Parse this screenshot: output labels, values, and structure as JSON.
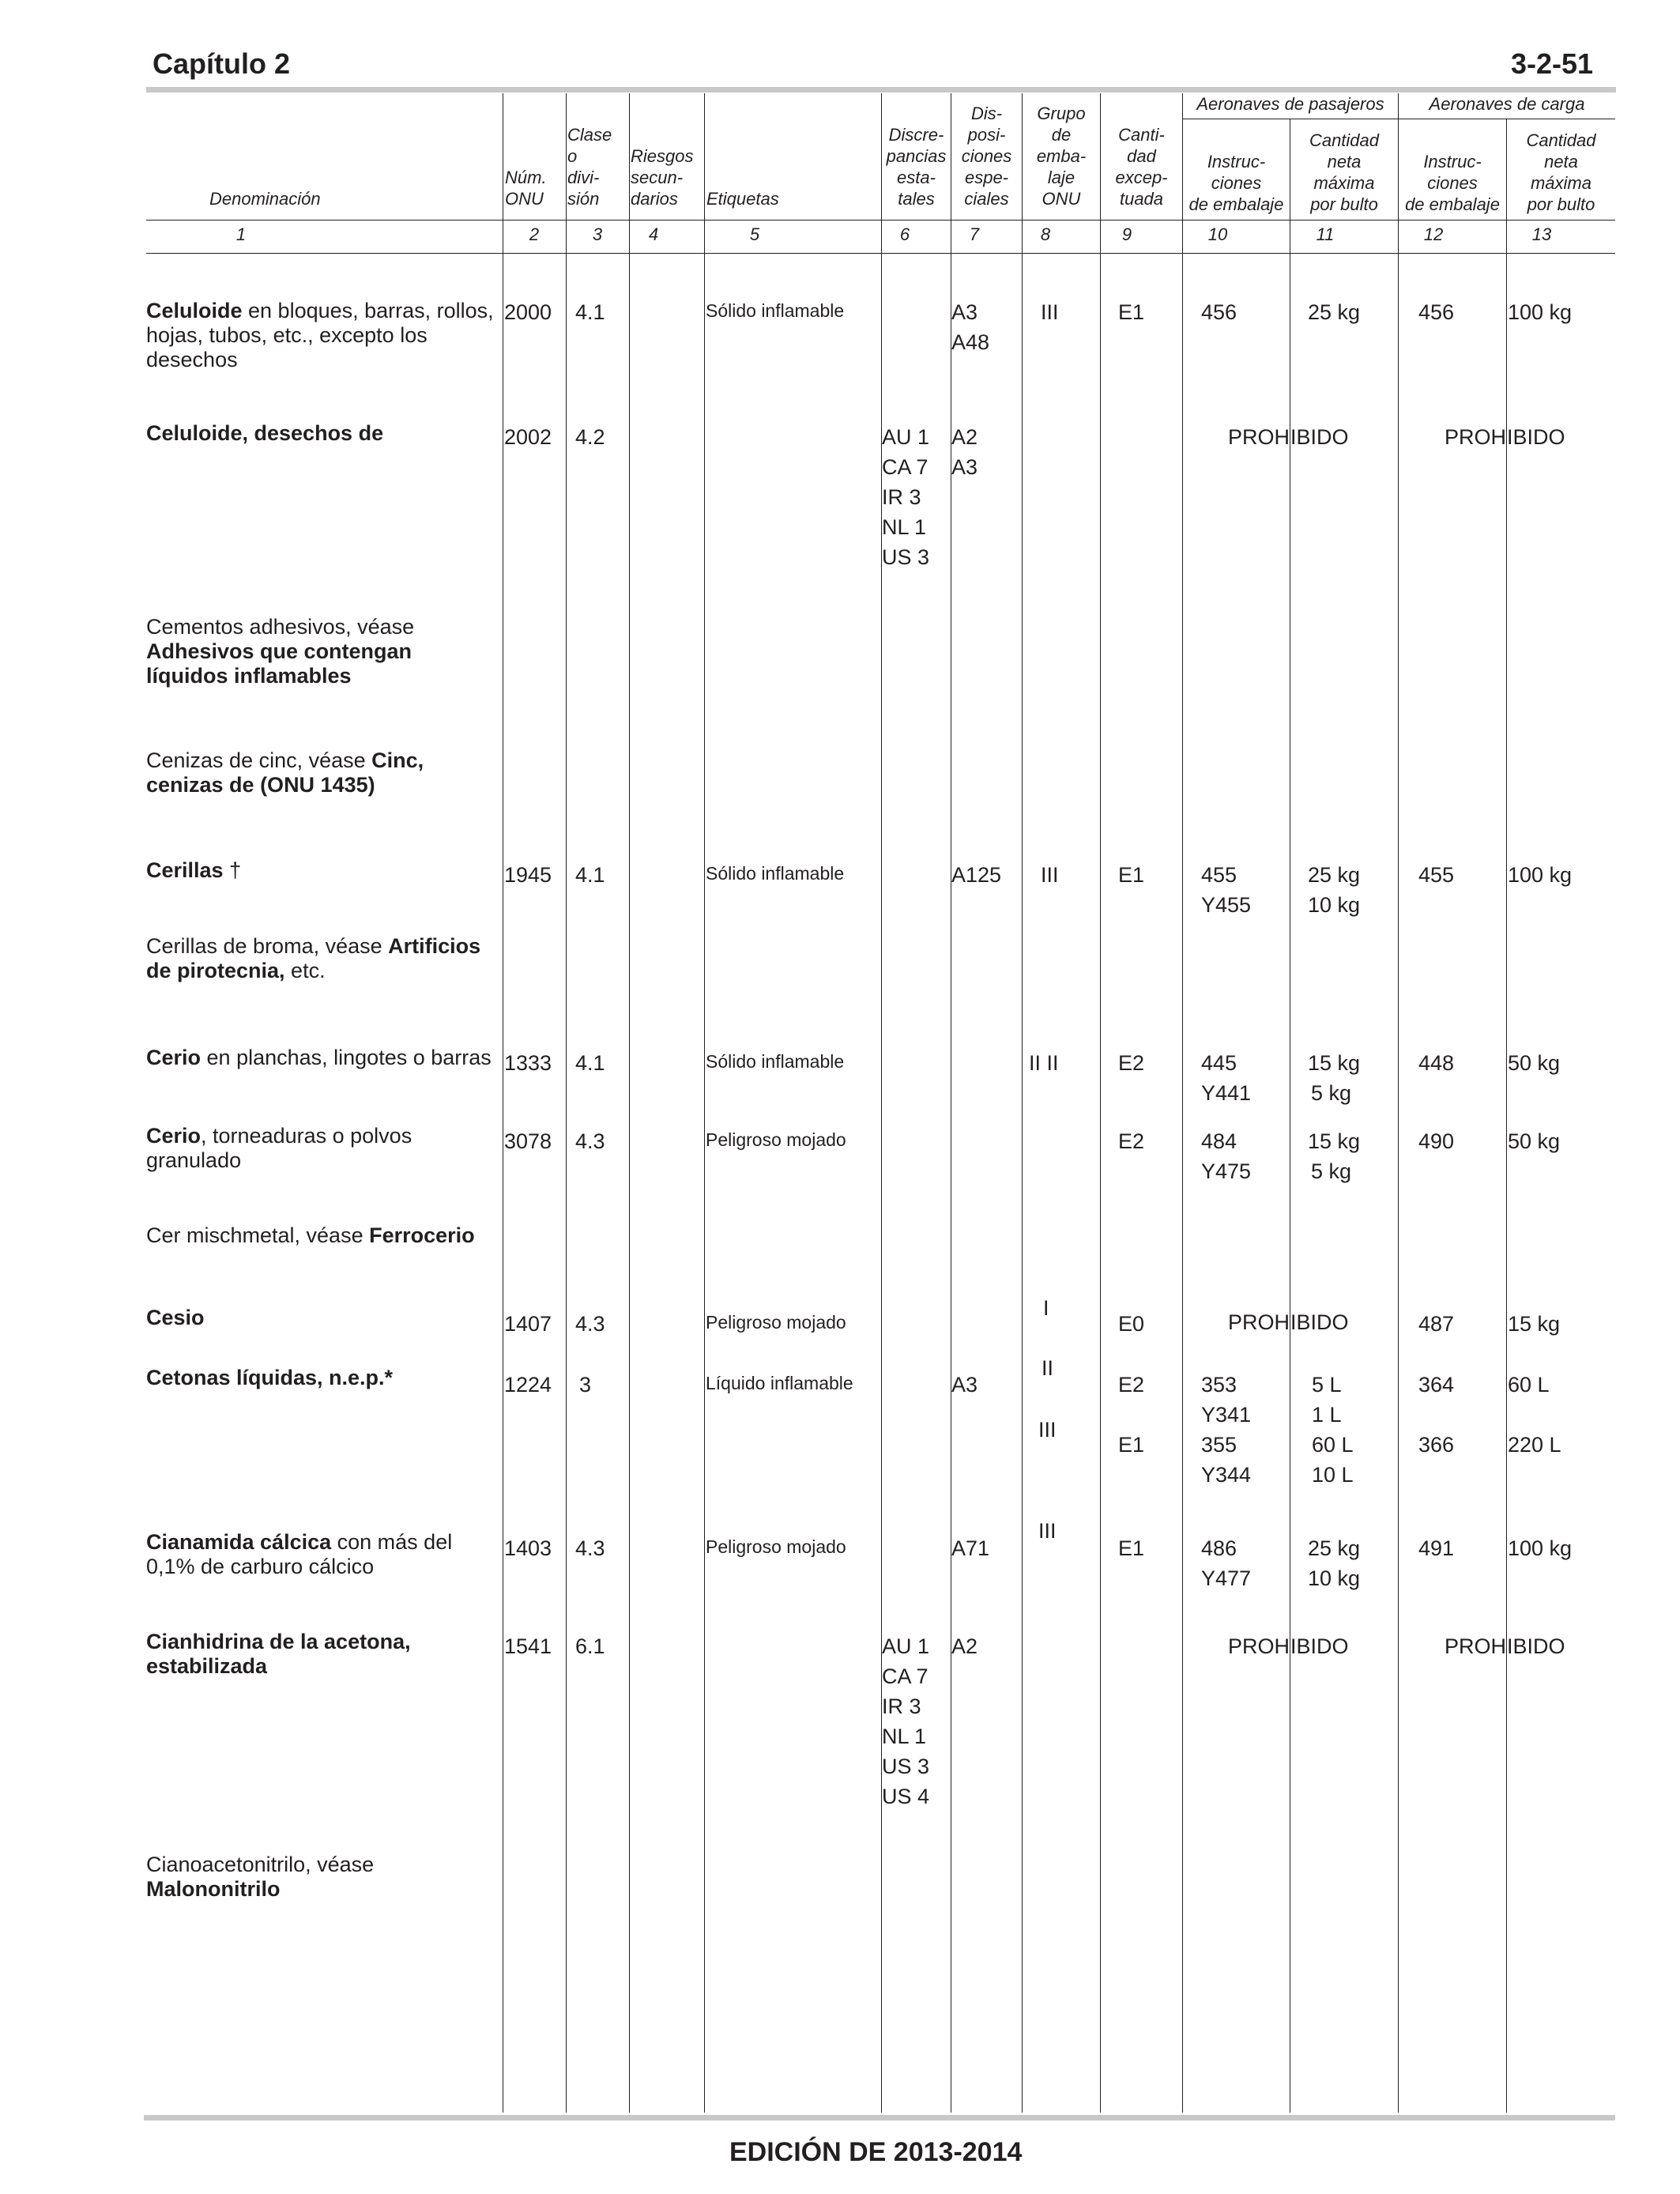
{
  "header": {
    "chapter": "Capítulo 2",
    "page_number": "3-2-51"
  },
  "footer": {
    "edition": "EDICIÓN DE 2013-2014"
  },
  "columns": {
    "group_passenger": "Aeronaves de pasajeros",
    "group_cargo": "Aeronaves de carga",
    "c1": [
      "Denominación"
    ],
    "c2": [
      "Núm.",
      "ONU"
    ],
    "c3": [
      "Clase",
      "o",
      "divi-",
      "sión"
    ],
    "c4": [
      "Riesgos",
      "secun-",
      "darios"
    ],
    "c5": [
      "Etiquetas"
    ],
    "c6": [
      "Discre-",
      "pancias",
      "esta-",
      "tales"
    ],
    "c7": [
      "Dis-",
      "posi-",
      "ciones",
      "espe-",
      "ciales"
    ],
    "c8": [
      "Grupo",
      "de",
      "emba-",
      "laje",
      "ONU"
    ],
    "c9": [
      "Canti-",
      "dad",
      "excep-",
      "tuada"
    ],
    "c10": [
      "Instruc-",
      "ciones",
      "de embalaje"
    ],
    "c11": [
      "Cantidad",
      "neta",
      "máxima",
      "por bulto"
    ],
    "c12": [
      "Instruc-",
      "ciones",
      "de embalaje"
    ],
    "c13": [
      "Cantidad",
      "neta",
      "máxima",
      "por bulto"
    ],
    "numbers": [
      "1",
      "2",
      "3",
      "4",
      "5",
      "6",
      "7",
      "8",
      "9",
      "10",
      "11",
      "12",
      "13"
    ]
  },
  "rows": {
    "r1": {
      "name_bold": "Celuloide",
      "name_rest": " en bloques, barras, rollos, hojas, tubos, etc., excepto los desechos",
      "un": "2000",
      "cls": "4.1",
      "label": "Sólido inflamable",
      "special": [
        "A3",
        "A48"
      ],
      "pg": "III",
      "exc": "E1",
      "pass_instr": [
        "456"
      ],
      "pass_qty": [
        "25 kg"
      ],
      "cargo_instr": [
        "456"
      ],
      "cargo_qty": [
        "100 kg"
      ]
    },
    "r2": {
      "name_bold": "Celuloide, desechos de",
      "un": "2002",
      "cls": "4.2",
      "discrep": [
        "AU 1",
        "CA 7",
        "IR 3",
        "NL 1",
        "US 3"
      ],
      "special": [
        "A2",
        "A3"
      ],
      "prohibited_left": "PROH",
      "prohibited_right": "IBIDO"
    },
    "r3": {
      "name_plain": "Cementos adhesivos, véase ",
      "name_bold": "Adhesivos que contengan líquidos inflamables"
    },
    "r4": {
      "name_plain": "Cenizas de cinc, véase ",
      "name_bold": "Cinc, cenizas de (ONU 1435)"
    },
    "r5": {
      "name_bold": "Cerillas",
      "name_rest": " †",
      "un": "1945",
      "cls": "4.1",
      "label": "Sólido inflamable",
      "special": [
        "A125"
      ],
      "pg": "III",
      "exc": "E1",
      "pass_instr": [
        "455",
        "Y455"
      ],
      "pass_qty": [
        "25 kg",
        "10 kg"
      ],
      "cargo_instr": [
        "455"
      ],
      "cargo_qty": [
        "100 kg"
      ]
    },
    "r6": {
      "name_plain": "Cerillas de broma, véase ",
      "name_bold": "Artificios de pirotecnia,",
      "name_rest": " etc."
    },
    "r7": {
      "name_bold": "Cerio",
      "name_rest": " en planchas, lingotes o barras",
      "un": "1333",
      "cls": "4.1",
      "label": "Sólido inflamable",
      "pg": "II II",
      "exc": "E2",
      "pass_instr": [
        "445",
        "Y441"
      ],
      "pass_qty": [
        "15 kg",
        "5 kg"
      ],
      "cargo_instr": [
        "448"
      ],
      "cargo_qty": [
        "50 kg"
      ]
    },
    "r8": {
      "name_bold": "Cerio",
      "name_rest": ", torneaduras o polvos granulado",
      "un": "3078",
      "cls": "4.3",
      "label": "Peligroso mojado",
      "exc": "E2",
      "pass_instr": [
        "484",
        "Y475"
      ],
      "pass_qty": [
        "15 kg",
        "5 kg"
      ],
      "cargo_instr": [
        "490"
      ],
      "cargo_qty": [
        "50 kg"
      ]
    },
    "r9": {
      "name_plain": "Cer mischmetal, véase ",
      "name_bold": "Ferrocerio"
    },
    "r10": {
      "name_bold": "Cesio",
      "un": "1407",
      "cls": "4.3",
      "label": "Peligroso mojado",
      "pg": "I",
      "exc": "E0",
      "prohibited_left": "PROH",
      "prohibited_right": "IBIDO",
      "cargo_instr": [
        "487"
      ],
      "cargo_qty": [
        "15 kg"
      ]
    },
    "r11": {
      "name_bold": "Cetonas líquidas, n.e.p.*",
      "un": "1224",
      "cls": "3",
      "label": "Líquido inflamable",
      "special": [
        "A3"
      ],
      "pg": [
        "II",
        "III"
      ],
      "exc": [
        "E2",
        "E1"
      ],
      "pass_instr": [
        "353",
        "Y341",
        "355",
        "Y344"
      ],
      "pass_qty": [
        "5 L",
        "1 L",
        "60 L",
        "10 L"
      ],
      "cargo_instr": [
        "364",
        "366"
      ],
      "cargo_qty": [
        "60 L",
        "220 L"
      ]
    },
    "r12": {
      "name_bold": "Cianamida cálcica",
      "name_rest": " con más del 0,1% de carburo cálcico",
      "un": "1403",
      "cls": "4.3",
      "label": "Peligroso mojado",
      "special": [
        "A71"
      ],
      "pg": "III",
      "exc": "E1",
      "pass_instr": [
        "486",
        "Y477"
      ],
      "pass_qty": [
        "25 kg",
        "10 kg"
      ],
      "cargo_instr": [
        "491"
      ],
      "cargo_qty": [
        "100 kg"
      ]
    },
    "r13": {
      "name_bold": "Cianhidrina de la acetona, estabilizada",
      "un": "1541",
      "cls": "6.1",
      "discrep": [
        "AU 1",
        "CA 7",
        "IR 3",
        "NL 1",
        "US 3",
        "US 4"
      ],
      "special": [
        "A2"
      ],
      "prohibited_left": "PROH",
      "prohibited_right": "IBIDO"
    },
    "r14": {
      "name_plain": "Cianoacetonitrilo, véase ",
      "name_bold": "Malononitrilo"
    }
  }
}
